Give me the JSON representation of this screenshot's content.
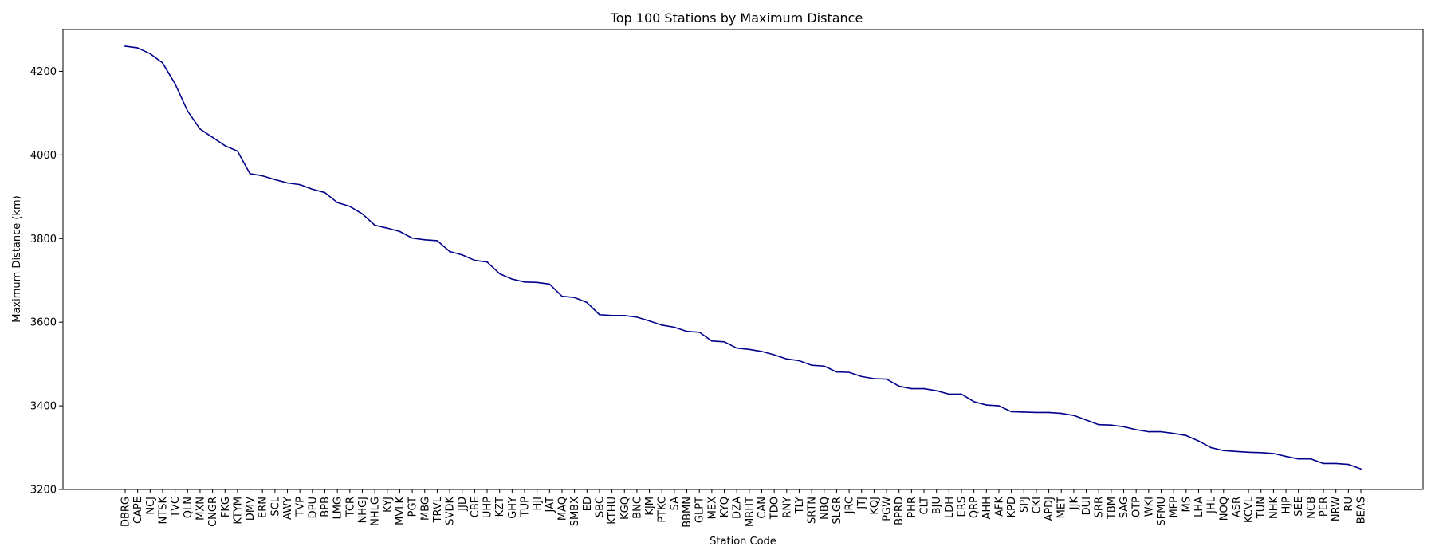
{
  "chart_data": {
    "type": "line",
    "title": "Top 100 Stations by Maximum Distance",
    "xlabel": "Station Code",
    "ylabel": "Maximum Distance (km)",
    "ylim": [
      3200,
      4300
    ],
    "yticks": [
      3200,
      3400,
      3600,
      3800,
      4000,
      4200
    ],
    "grid": false,
    "line_color": "#00008b",
    "categories": [
      "DBRG",
      "CAPE",
      "NCJ",
      "NTSK",
      "TVC",
      "QLN",
      "MXN",
      "CNGR",
      "FKG",
      "KTYM",
      "DMV",
      "ERN",
      "SCL",
      "AWY",
      "TVP",
      "DPU",
      "BPB",
      "LMG",
      "TCR",
      "NHGJ",
      "NHLG",
      "KYJ",
      "MVLK",
      "PGT",
      "MBG",
      "TRVL",
      "SVDK",
      "JJD",
      "CBE",
      "UHP",
      "KZT",
      "GHY",
      "TUP",
      "HJI",
      "JAT",
      "MAQ",
      "SMBX",
      "ED",
      "SBC",
      "KTHU",
      "KGQ",
      "BNC",
      "KJM",
      "PTKC",
      "SA",
      "BBMN",
      "GLPT",
      "MEX",
      "KYQ",
      "DZA",
      "MRHT",
      "CAN",
      "TDO",
      "RNY",
      "TLY",
      "SRTN",
      "NBQ",
      "SLGR",
      "JRC",
      "JTJ",
      "KQJ",
      "PGW",
      "BPRD",
      "PHR",
      "CLT",
      "BJU",
      "LDH",
      "ERS",
      "QRP",
      "AHH",
      "AFK",
      "KPD",
      "SPJ",
      "CKI",
      "APDJ",
      "MET",
      "JJK",
      "DUI",
      "SRR",
      "TBM",
      "SAG",
      "OTP",
      "WKI",
      "SFMU",
      "MFP",
      "MS",
      "LHA",
      "JHL",
      "NOQ",
      "ASR",
      "KCVL",
      "TUN",
      "NHK",
      "HJP",
      "SEE",
      "NCB",
      "PER",
      "NRW",
      "RU",
      "BEAS"
    ],
    "values": [
      4260,
      4256,
      4242,
      4220,
      4170,
      4105,
      4062,
      4042,
      4022,
      4009,
      3955,
      3950,
      3941,
      3933,
      3929,
      3918,
      3910,
      3886,
      3877,
      3859,
      3832,
      3825,
      3817,
      3801,
      3797,
      3795,
      3769,
      3761,
      3748,
      3744,
      3716,
      3703,
      3696,
      3695,
      3691,
      3662,
      3659,
      3647,
      3618,
      3616,
      3616,
      3612,
      3603,
      3593,
      3588,
      3578,
      3576,
      3555,
      3553,
      3538,
      3535,
      3530,
      3522,
      3512,
      3508,
      3497,
      3495,
      3481,
      3480,
      3470,
      3465,
      3464,
      3447,
      3441,
      3441,
      3436,
      3428,
      3428,
      3410,
      3402,
      3400,
      3386,
      3385,
      3384,
      3384,
      3382,
      3377,
      3366,
      3355,
      3354,
      3350,
      3343,
      3338,
      3338,
      3334,
      3329,
      3316,
      3300,
      3293,
      3291,
      3289,
      3288,
      3286,
      3279,
      3273,
      3273,
      3262,
      3262,
      3260,
      3249
    ]
  }
}
